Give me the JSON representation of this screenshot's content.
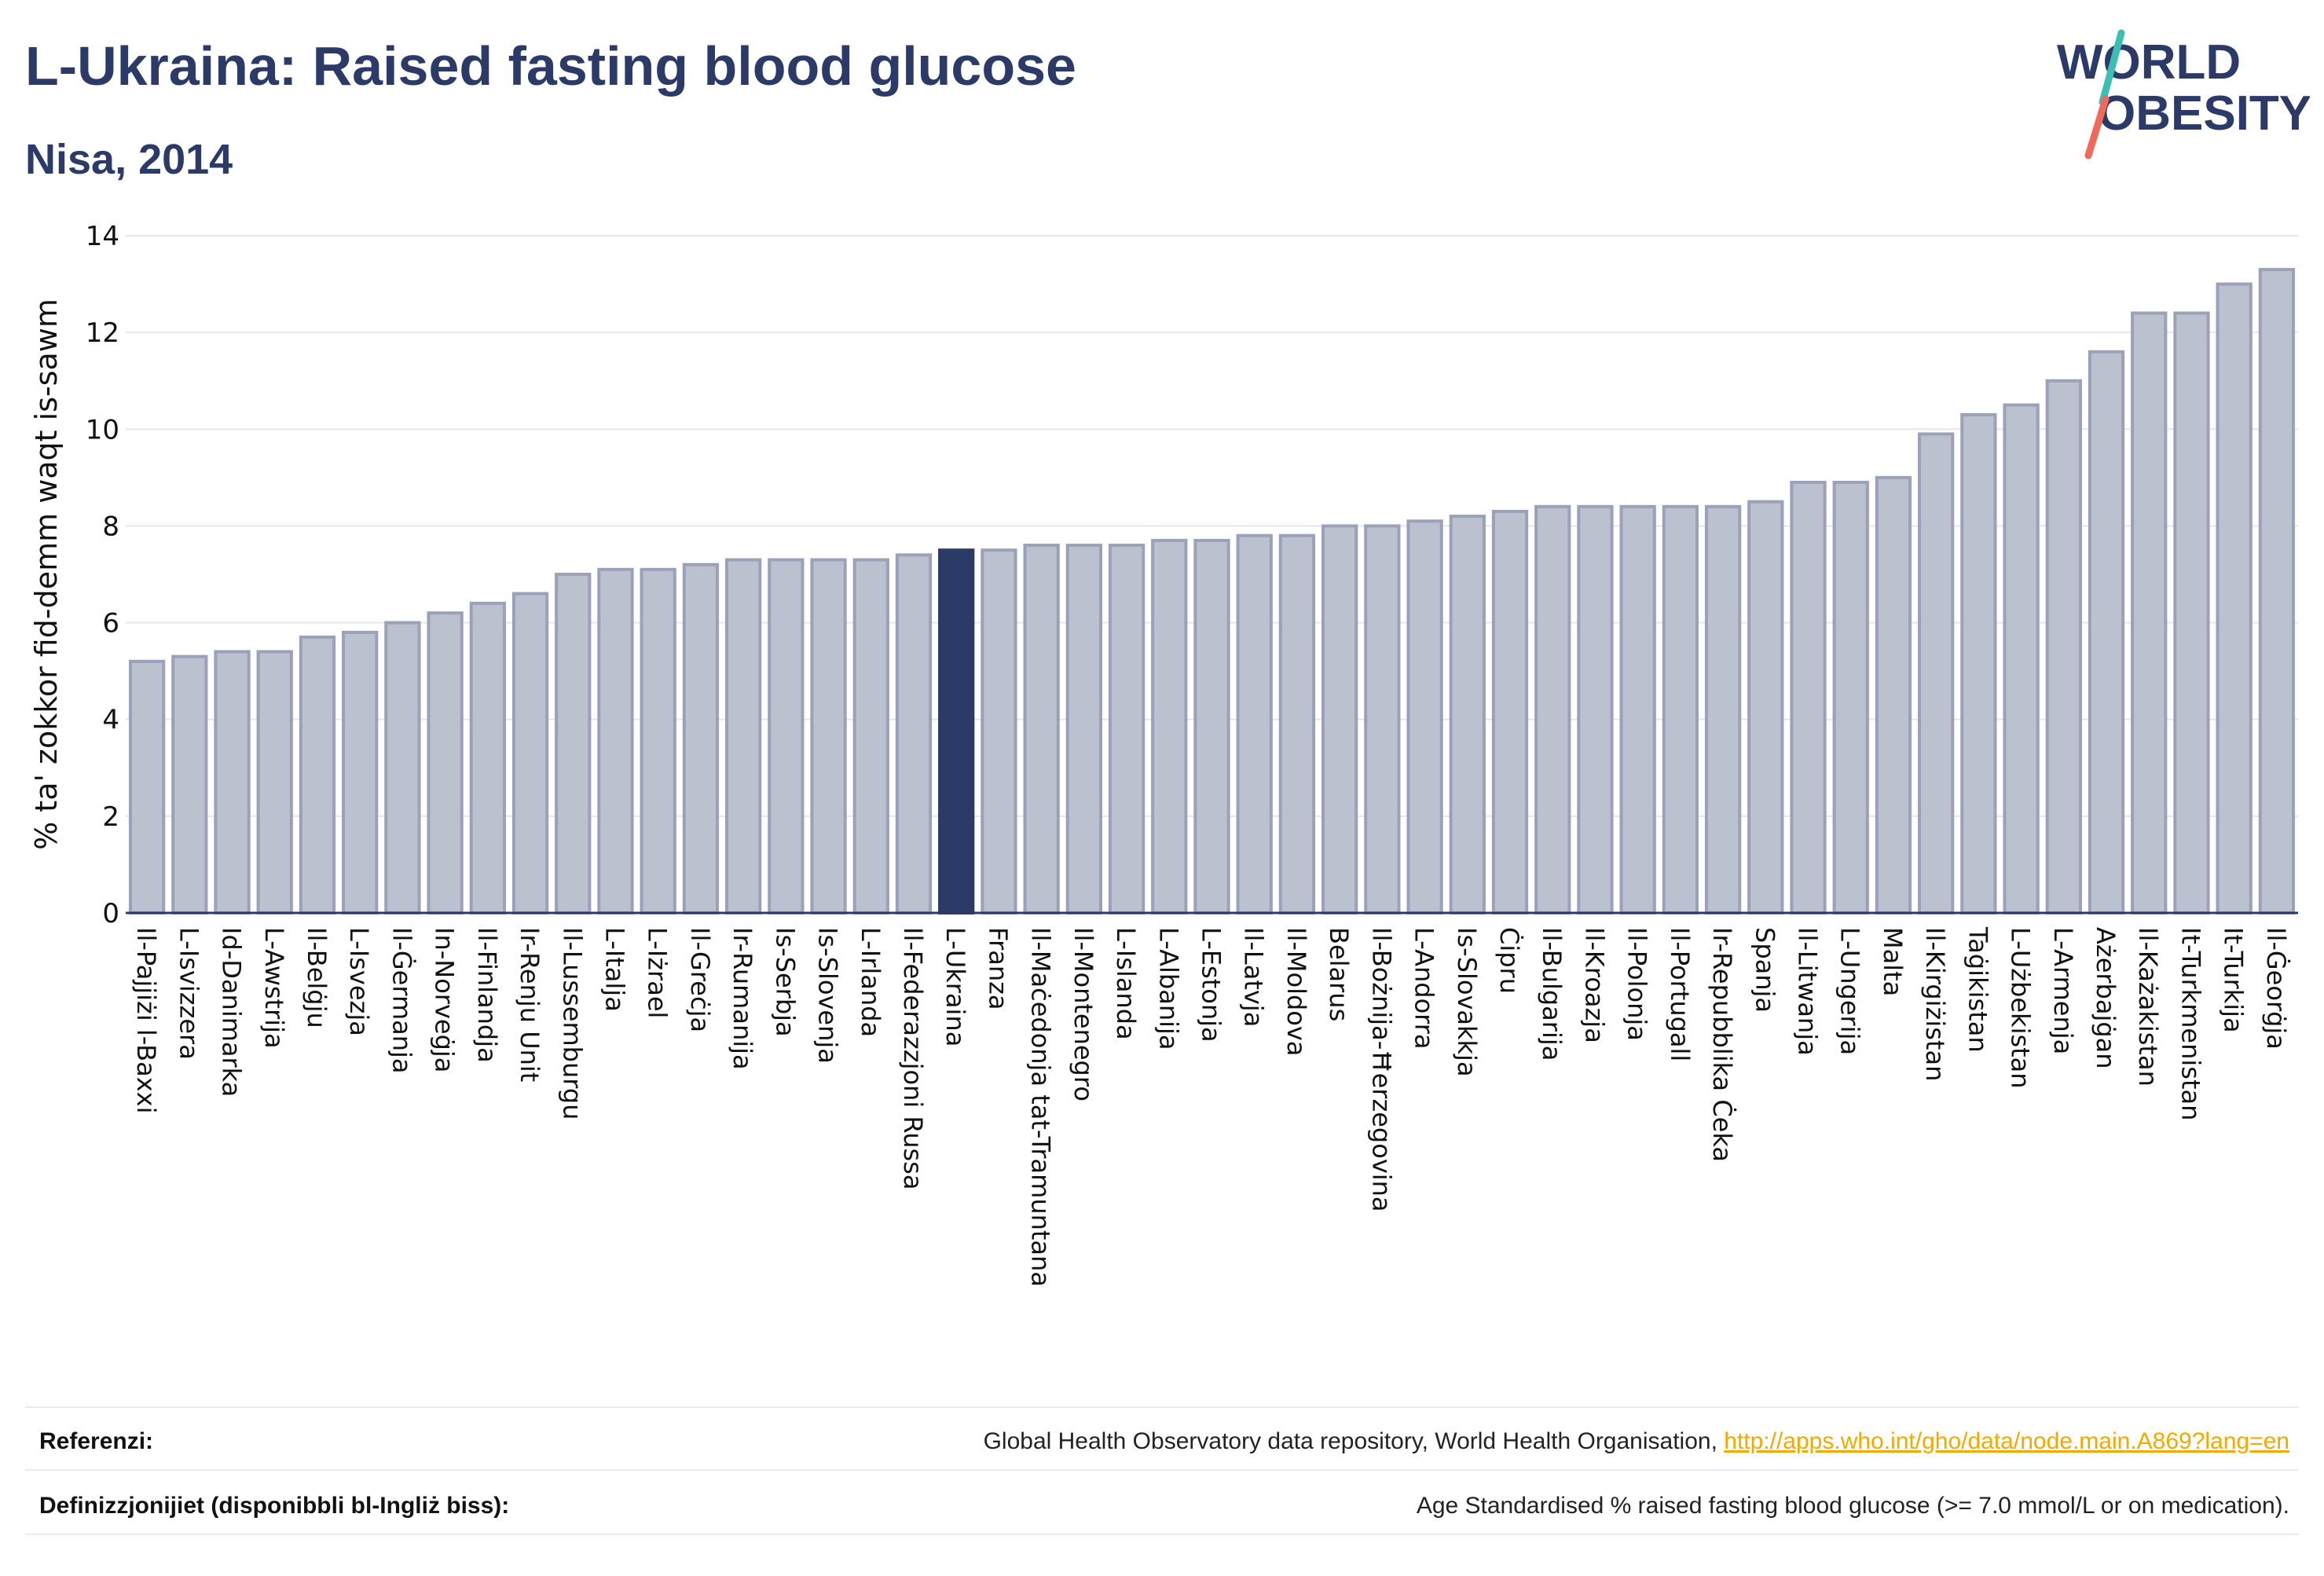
{
  "header": {
    "title": "L-Ukraina: Raised fasting blood glucose",
    "subtitle": "Nisa, 2014"
  },
  "logo": {
    "line1": "WORLD",
    "line2": "OBESITY",
    "icon": "world-obesity-logo"
  },
  "colors": {
    "bar": "#bcc1cf",
    "bar_stroke": "#9aa1b8",
    "highlight": "#2b3a67",
    "title": "#2b3a67",
    "link": "#f2a900"
  },
  "footer": {
    "references_label": "Referenzi:",
    "references_text": "Global Health Observatory data repository, World Health Organisation,",
    "references_link": "http://apps.who.int/gho/data/node.main.A869?lang=en",
    "definitions_label": "Definizzjonijiet (disponibbli bl-Ingliż biss):",
    "definitions_text": "Age Standardised % raised fasting blood glucose (>= 7.0 mmol/L or on medication)."
  },
  "chart_data": {
    "type": "bar",
    "title": "L-Ukraina: Raised fasting blood glucose",
    "subtitle": "Nisa, 2014",
    "xlabel": "",
    "ylabel": "% ta' zokkor fid-demm waqt is-sawm",
    "ylim": [
      0,
      14
    ],
    "yticks": [
      0,
      2,
      4,
      6,
      8,
      10,
      12,
      14
    ],
    "grid": true,
    "highlight": "L-Ukraina",
    "categories": [
      "Il-Pajjiżi l-Baxxi",
      "L-Isvizzera",
      "Id-Danimarka",
      "L-Awstrija",
      "Il-Belġju",
      "L-Isvezja",
      "Il-Ġermanja",
      "In-Norveġja",
      "Il-Finlandja",
      "Ir-Renju Unit",
      "Il-Lussemburgu",
      "L-Italja",
      "L-Iżrael",
      "Il-Greċja",
      "Ir-Rumanija",
      "Is-Serbja",
      "Is-Slovenja",
      "L-Irlanda",
      "Il-Federazzjoni Russa",
      "L-Ukraina",
      "Franza",
      "Il-Maċedonja tat-Tramuntana",
      "Il-Montenegro",
      "L-Islanda",
      "L-Albanija",
      "L-Estonja",
      "Il-Latvja",
      "Il-Moldova",
      "Belarus",
      "Il-Bożnija-Ħerzegovina",
      "L-Andorra",
      "Is-Slovakkja",
      "Ċipru",
      "Il-Bulgarija",
      "Il-Kroazja",
      "Il-Polonja",
      "Il-Portugall",
      "Ir-Repubblika Ċeka",
      "Spanja",
      "Il-Litwanja",
      "L-Ungerija",
      "Malta",
      "Il-Kirgiżistan",
      "Taġikistan",
      "L-Użbekistan",
      "L-Armenja",
      "Ażerbajġan",
      "Il-Każakistan",
      "It-Turkmenistan",
      "It-Turkija",
      "Il-Ġeorġja"
    ],
    "values": [
      5.2,
      5.3,
      5.4,
      5.4,
      5.7,
      5.8,
      6.0,
      6.2,
      6.4,
      6.6,
      7.0,
      7.1,
      7.1,
      7.2,
      7.3,
      7.3,
      7.3,
      7.3,
      7.4,
      7.5,
      7.5,
      7.6,
      7.6,
      7.6,
      7.7,
      7.7,
      7.8,
      7.8,
      8.0,
      8.0,
      8.1,
      8.2,
      8.3,
      8.4,
      8.4,
      8.4,
      8.4,
      8.4,
      8.5,
      8.9,
      8.9,
      9.0,
      9.9,
      10.3,
      10.5,
      11.0,
      11.6,
      12.4,
      12.4,
      13.0,
      13.3
    ]
  }
}
